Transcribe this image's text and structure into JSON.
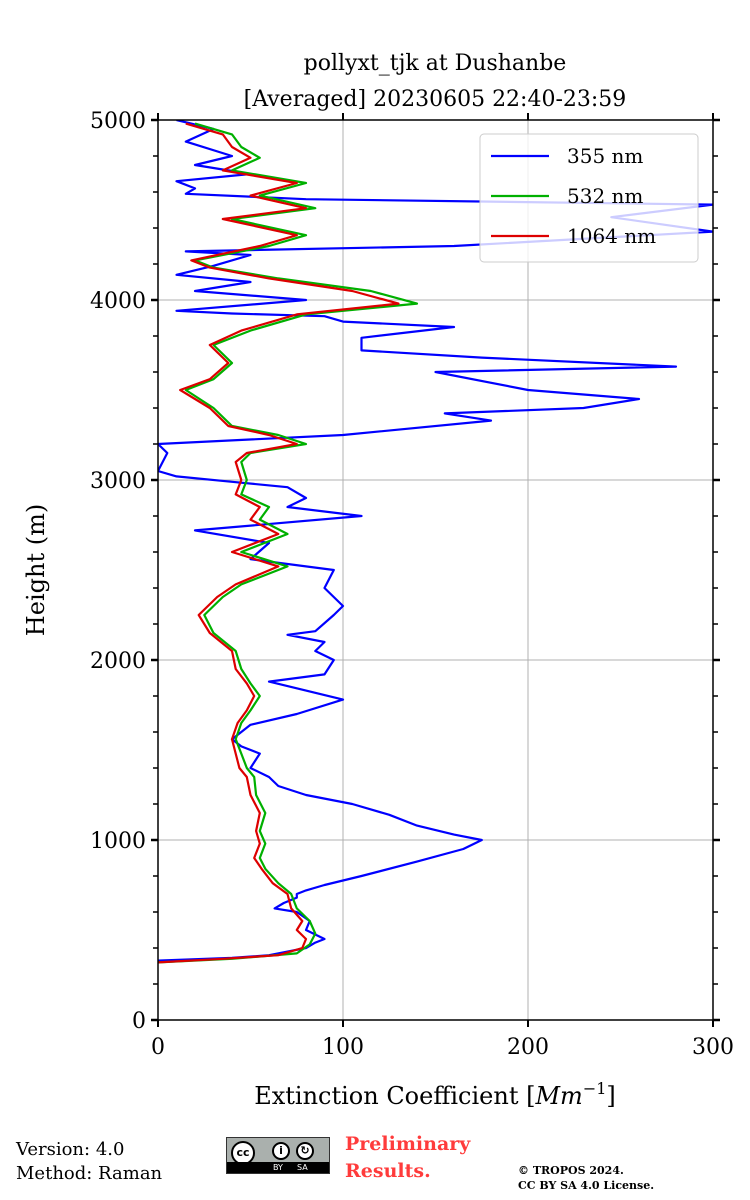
{
  "chart_data": {
    "type": "line",
    "title_line1": "pollyxt_tjk at Dushanbe",
    "title_line2": "[Averaged] 20230605 22:40-23:59",
    "xlabel_prefix": "Extinction Coefficient [",
    "xlabel_unit": "Mm",
    "xlabel_exp": "−1",
    "xlabel_suffix": "]",
    "ylabel": "Height (m)",
    "xlim": [
      0,
      300
    ],
    "ylim": [
      0,
      5000
    ],
    "x_ticks": [
      "0",
      "100",
      "200",
      "300"
    ],
    "y_ticks": [
      "0",
      "1000",
      "2000",
      "3000",
      "4000",
      "5000"
    ],
    "grid": true,
    "legend_position": "top-right",
    "series": [
      {
        "name": "355 nm",
        "color": "#0000ff",
        "points": [
          [
            0,
            330
          ],
          [
            40,
            345
          ],
          [
            60,
            360
          ],
          [
            80,
            400
          ],
          [
            85,
            430
          ],
          [
            90,
            450
          ],
          [
            80,
            500
          ],
          [
            82,
            550
          ],
          [
            75,
            600
          ],
          [
            63,
            620
          ],
          [
            68,
            650
          ],
          [
            75,
            680
          ],
          [
            75,
            700
          ],
          [
            80,
            720
          ],
          [
            90,
            750
          ],
          [
            110,
            800
          ],
          [
            140,
            880
          ],
          [
            165,
            950
          ],
          [
            175,
            1000
          ],
          [
            160,
            1030
          ],
          [
            140,
            1080
          ],
          [
            125,
            1140
          ],
          [
            105,
            1200
          ],
          [
            80,
            1250
          ],
          [
            65,
            1300
          ],
          [
            60,
            1350
          ],
          [
            50,
            1400
          ],
          [
            55,
            1480
          ],
          [
            45,
            1520
          ],
          [
            40,
            1560
          ],
          [
            45,
            1600
          ],
          [
            50,
            1640
          ],
          [
            75,
            1700
          ],
          [
            100,
            1780
          ],
          [
            80,
            1830
          ],
          [
            60,
            1880
          ],
          [
            90,
            1920
          ],
          [
            95,
            2000
          ],
          [
            85,
            2050
          ],
          [
            90,
            2100
          ],
          [
            70,
            2140
          ],
          [
            85,
            2160
          ],
          [
            95,
            2250
          ],
          [
            100,
            2300
          ],
          [
            90,
            2400
          ],
          [
            95,
            2500
          ],
          [
            50,
            2560
          ],
          [
            60,
            2650
          ],
          [
            20,
            2720
          ],
          [
            110,
            2800
          ],
          [
            70,
            2850
          ],
          [
            80,
            2900
          ],
          [
            70,
            2960
          ],
          [
            40,
            2990
          ],
          [
            10,
            3020
          ],
          [
            0,
            3050
          ],
          [
            5,
            3150
          ],
          [
            0,
            3200
          ],
          [
            100,
            3250
          ],
          [
            180,
            3330
          ],
          [
            155,
            3370
          ],
          [
            230,
            3400
          ],
          [
            260,
            3450
          ],
          [
            200,
            3500
          ],
          [
            150,
            3600
          ],
          [
            280,
            3630
          ],
          [
            175,
            3680
          ],
          [
            110,
            3720
          ],
          [
            110,
            3790
          ],
          [
            160,
            3850
          ],
          [
            100,
            3880
          ],
          [
            90,
            3910
          ],
          [
            40,
            3925
          ],
          [
            10,
            3940
          ],
          [
            80,
            4000
          ],
          [
            20,
            4050
          ],
          [
            50,
            4100
          ],
          [
            10,
            4140
          ],
          [
            30,
            4190
          ],
          [
            50,
            4250
          ],
          [
            15,
            4270
          ],
          [
            160,
            4300
          ],
          [
            300,
            4380
          ],
          [
            245,
            4460
          ],
          [
            300,
            4530
          ],
          [
            80,
            4560
          ],
          [
            15,
            4590
          ],
          [
            20,
            4620
          ],
          [
            10,
            4660
          ],
          [
            50,
            4700
          ],
          [
            20,
            4750
          ],
          [
            40,
            4800
          ],
          [
            15,
            4880
          ],
          [
            30,
            4950
          ],
          [
            10,
            5000
          ]
        ]
      },
      {
        "name": "532 nm",
        "color": "#00b000",
        "points": [
          [
            0,
            320
          ],
          [
            40,
            340
          ],
          [
            75,
            370
          ],
          [
            82,
            420
          ],
          [
            85,
            480
          ],
          [
            82,
            550
          ],
          [
            75,
            620
          ],
          [
            72,
            700
          ],
          [
            65,
            760
          ],
          [
            58,
            840
          ],
          [
            55,
            900
          ],
          [
            58,
            980
          ],
          [
            55,
            1050
          ],
          [
            58,
            1150
          ],
          [
            53,
            1250
          ],
          [
            52,
            1350
          ],
          [
            48,
            1400
          ],
          [
            45,
            1480
          ],
          [
            42,
            1560
          ],
          [
            45,
            1650
          ],
          [
            50,
            1720
          ],
          [
            55,
            1800
          ],
          [
            50,
            1870
          ],
          [
            45,
            1950
          ],
          [
            42,
            2050
          ],
          [
            30,
            2150
          ],
          [
            25,
            2250
          ],
          [
            35,
            2350
          ],
          [
            45,
            2420
          ],
          [
            70,
            2520
          ],
          [
            45,
            2600
          ],
          [
            70,
            2700
          ],
          [
            55,
            2780
          ],
          [
            60,
            2850
          ],
          [
            45,
            2920
          ],
          [
            48,
            3000
          ],
          [
            45,
            3100
          ],
          [
            50,
            3150
          ],
          [
            80,
            3200
          ],
          [
            65,
            3250
          ],
          [
            40,
            3300
          ],
          [
            30,
            3400
          ],
          [
            15,
            3500
          ],
          [
            30,
            3560
          ],
          [
            40,
            3650
          ],
          [
            30,
            3750
          ],
          [
            50,
            3830
          ],
          [
            80,
            3920
          ],
          [
            140,
            3980
          ],
          [
            115,
            4050
          ],
          [
            65,
            4120
          ],
          [
            30,
            4180
          ],
          [
            20,
            4220
          ],
          [
            60,
            4300
          ],
          [
            80,
            4360
          ],
          [
            40,
            4450
          ],
          [
            85,
            4510
          ],
          [
            55,
            4580
          ],
          [
            80,
            4650
          ],
          [
            40,
            4720
          ],
          [
            55,
            4790
          ],
          [
            45,
            4850
          ],
          [
            40,
            4920
          ],
          [
            20,
            4980
          ]
        ]
      },
      {
        "name": "1064 nm",
        "color": "#dd0000",
        "points": [
          [
            0,
            320
          ],
          [
            35,
            340
          ],
          [
            65,
            360
          ],
          [
            78,
            400
          ],
          [
            80,
            450
          ],
          [
            75,
            500
          ],
          [
            78,
            550
          ],
          [
            72,
            620
          ],
          [
            70,
            700
          ],
          [
            62,
            760
          ],
          [
            56,
            840
          ],
          [
            52,
            900
          ],
          [
            55,
            980
          ],
          [
            53,
            1050
          ],
          [
            55,
            1150
          ],
          [
            50,
            1250
          ],
          [
            48,
            1350
          ],
          [
            44,
            1400
          ],
          [
            42,
            1480
          ],
          [
            40,
            1560
          ],
          [
            43,
            1650
          ],
          [
            48,
            1720
          ],
          [
            52,
            1800
          ],
          [
            48,
            1870
          ],
          [
            42,
            1950
          ],
          [
            40,
            2050
          ],
          [
            28,
            2150
          ],
          [
            22,
            2250
          ],
          [
            32,
            2350
          ],
          [
            42,
            2420
          ],
          [
            65,
            2520
          ],
          [
            40,
            2600
          ],
          [
            65,
            2700
          ],
          [
            50,
            2780
          ],
          [
            55,
            2850
          ],
          [
            42,
            2920
          ],
          [
            45,
            3000
          ],
          [
            42,
            3100
          ],
          [
            48,
            3150
          ],
          [
            75,
            3200
          ],
          [
            60,
            3250
          ],
          [
            38,
            3300
          ],
          [
            28,
            3400
          ],
          [
            12,
            3500
          ],
          [
            28,
            3560
          ],
          [
            38,
            3650
          ],
          [
            28,
            3750
          ],
          [
            45,
            3830
          ],
          [
            75,
            3920
          ],
          [
            130,
            3980
          ],
          [
            105,
            4050
          ],
          [
            60,
            4120
          ],
          [
            28,
            4180
          ],
          [
            18,
            4220
          ],
          [
            55,
            4300
          ],
          [
            75,
            4360
          ],
          [
            35,
            4450
          ],
          [
            80,
            4510
          ],
          [
            50,
            4580
          ],
          [
            75,
            4650
          ],
          [
            35,
            4720
          ],
          [
            50,
            4790
          ],
          [
            40,
            4850
          ],
          [
            35,
            4920
          ],
          [
            15,
            4980
          ]
        ]
      }
    ]
  },
  "footer": {
    "version": "Version: 4.0",
    "method": "Method: Raman",
    "preliminary_line1": "Preliminary",
    "preliminary_line2": "Results.",
    "copyright_line1": "© TROPOS 2024.",
    "copyright_line2": "CC BY SA 4.0 License.",
    "cc_badge_text": "cc",
    "cc_by": "BY",
    "cc_sa": "SA"
  }
}
